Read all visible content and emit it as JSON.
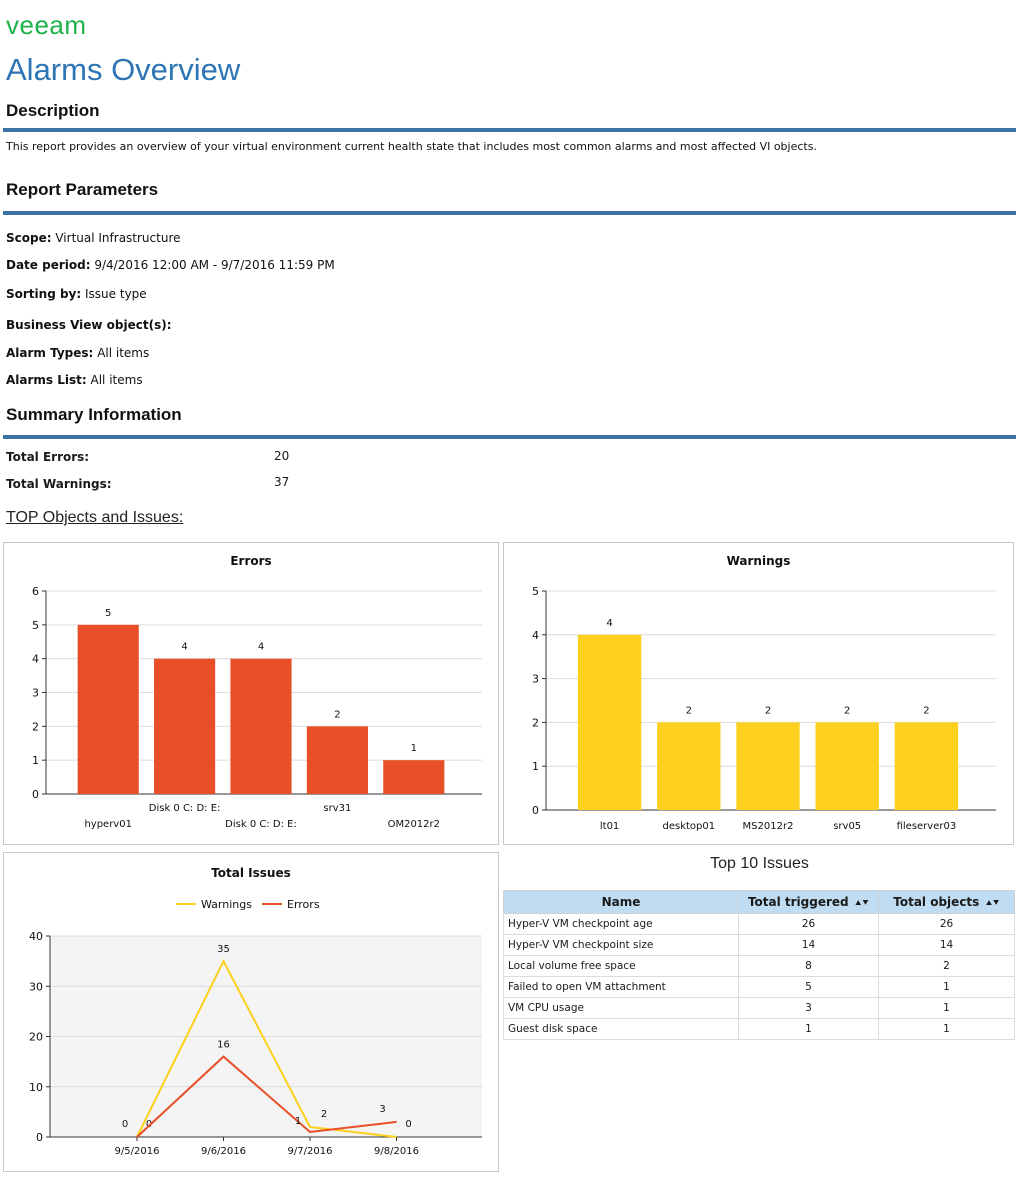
{
  "header": {
    "logo": "veeam",
    "title": "Alarms Overview"
  },
  "description": {
    "heading": "Description",
    "text": "This report provides an overview of your virtual environment current health state that includes most common alarms and most affected VI objects."
  },
  "parameters": {
    "heading": "Report Parameters",
    "items": [
      {
        "label": "Scope:",
        "value": "Virtual Infrastructure"
      },
      {
        "label": "Date period:",
        "value": "9/4/2016 12:00 AM - 9/7/2016 11:59 PM"
      },
      {
        "label": "Sorting by:",
        "value": "Issue type"
      },
      {
        "label": "Business View object(s):",
        "value": ""
      },
      {
        "label": "Alarm Types:",
        "value": "All items"
      },
      {
        "label": "Alarms List:",
        "value": "All items"
      }
    ]
  },
  "summary": {
    "heading": "Summary Information",
    "total_errors_label": "Total Errors:",
    "total_errors": "20",
    "total_warnings_label": "Total Warnings:",
    "total_warnings": "37"
  },
  "top_link": "TOP Objects and Issues:",
  "colors": {
    "errors": "#e84e27",
    "warnings": "#fcd01c",
    "rule": "#3a72a6",
    "title": "#2e75b6",
    "logo": "#1fb24a"
  },
  "chart_data": [
    {
      "type": "bar",
      "title": "Errors",
      "categories": [
        "hyperv01",
        "Disk 0  C: D: E:",
        "Disk 0  C: D: E:",
        "srv31",
        "OM2012r2"
      ],
      "values": [
        5,
        4,
        4,
        2,
        1
      ],
      "ylim": [
        0,
        6
      ],
      "yticks": [
        0,
        1,
        2,
        3,
        4,
        5,
        6
      ],
      "grid": true,
      "color": "#e84e27"
    },
    {
      "type": "bar",
      "title": "Warnings",
      "categories": [
        "lt01",
        "desktop01",
        "MS2012r2",
        "srv05",
        "fileserver03"
      ],
      "values": [
        4,
        2,
        2,
        2,
        2
      ],
      "ylim": [
        0,
        5
      ],
      "yticks": [
        0,
        1,
        2,
        3,
        4,
        5
      ],
      "grid": true,
      "color": "#fcd01c"
    },
    {
      "type": "line",
      "title": "Total Issues",
      "x": [
        "9/5/2016",
        "9/6/2016",
        "9/7/2016",
        "9/8/2016"
      ],
      "series": [
        {
          "name": "Warnings",
          "values": [
            0,
            35,
            2,
            0
          ],
          "color": "#fcd01c"
        },
        {
          "name": "Errors",
          "values": [
            0,
            16,
            1,
            3
          ],
          "color": "#e84e27"
        }
      ],
      "ylim": [
        0,
        40
      ],
      "yticks": [
        0,
        10,
        20,
        30,
        40
      ],
      "legend": "top-center",
      "grid": true
    }
  ],
  "top10": {
    "title": "Top 10 Issues",
    "columns": [
      "Name",
      "Total triggered",
      "Total objects"
    ],
    "rows": [
      [
        "Hyper-V VM checkpoint age",
        "26",
        "26"
      ],
      [
        "Hyper-V VM checkpoint size",
        "14",
        "14"
      ],
      [
        "Local volume free space",
        "8",
        "2"
      ],
      [
        "Failed to open VM attachment",
        "5",
        "1"
      ],
      [
        "VM CPU usage",
        "3",
        "1"
      ],
      [
        "Guest disk space",
        "1",
        "1"
      ]
    ]
  }
}
